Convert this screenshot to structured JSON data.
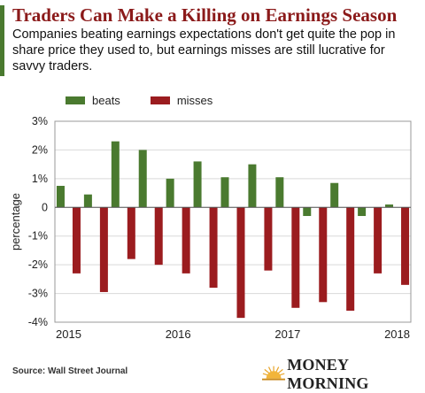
{
  "header": {
    "title": "Traders Can Make a Killing on Earnings Season",
    "subtitle": "Companies beating earnings expectations don't get quite the pop in share price they used to, but earnings misses are still lucrative for savvy traders."
  },
  "footer": {
    "source": "Source: Wall Street Journal",
    "logo_text": "MONEY MORNING",
    "logo_icon": "sunrise-icon"
  },
  "colors": {
    "accent": "#4a7a2f",
    "title": "#8b1a1a",
    "beats": "#4a7a2f",
    "misses": "#9b1c1f",
    "grid": "#d9d9d9"
  },
  "chart_data": {
    "type": "bar",
    "title": "",
    "xlabel": "",
    "ylabel": "percentage",
    "ylim": [
      -4,
      3
    ],
    "yticks": [
      3,
      2,
      1,
      0,
      -1,
      -2,
      -3,
      -4
    ],
    "ytick_labels": [
      "3%",
      "2%",
      "1%",
      "0",
      "-1%",
      "-2%",
      "-3%",
      "-4%"
    ],
    "xtick_labels": [
      "2015",
      "2016",
      "2017",
      "2018"
    ],
    "grid": true,
    "legend_position": "top-left",
    "categories": [
      "2015 Q1",
      "2015 Q2",
      "2015 Q3",
      "2015 Q4",
      "2016 Q1",
      "2016 Q2",
      "2016 Q3",
      "2016 Q4",
      "2017 Q1",
      "2017 Q2",
      "2017 Q3",
      "2017 Q4",
      "2018 Q1"
    ],
    "series": [
      {
        "name": "beats",
        "values": [
          0.75,
          0.45,
          2.3,
          2.0,
          1.0,
          1.6,
          1.05,
          1.5,
          1.05,
          -0.3,
          0.85,
          -0.3,
          0.1
        ]
      },
      {
        "name": "misses",
        "values": [
          -2.3,
          -2.95,
          -1.8,
          -2.0,
          -2.3,
          -2.8,
          -3.85,
          -2.2,
          -3.5,
          -3.3,
          -3.6,
          -2.3,
          -2.7
        ]
      }
    ]
  }
}
